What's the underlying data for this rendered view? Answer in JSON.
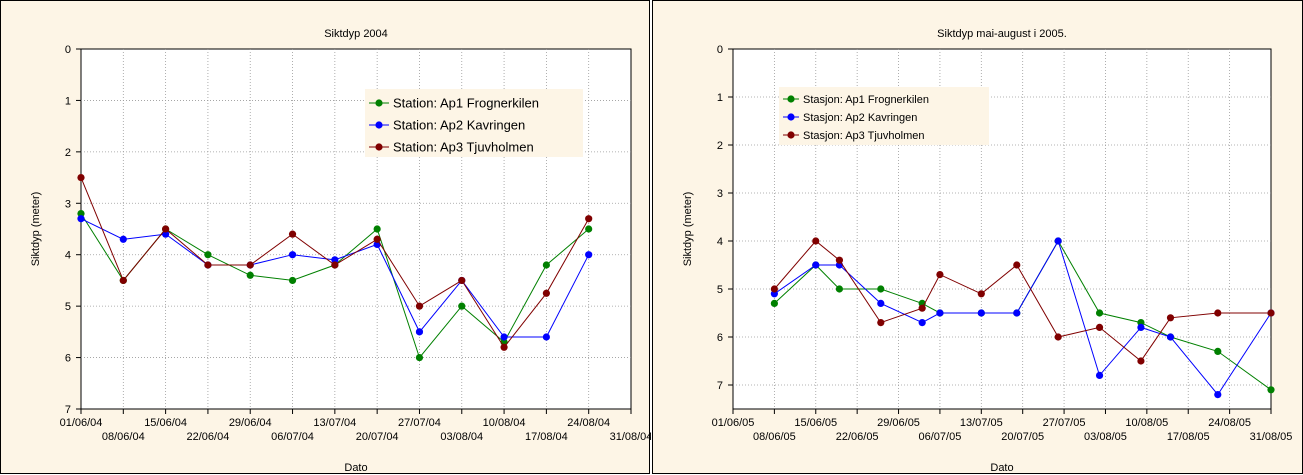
{
  "chart_data": [
    {
      "type": "line",
      "title": "Siktdyp 2004",
      "xlabel": "Dato",
      "ylabel": "Siktdyp (meter)",
      "y_inverted": true,
      "ylim": [
        0,
        7
      ],
      "y_ticks": [
        0,
        1,
        2,
        3,
        4,
        5,
        6,
        7
      ],
      "xlim": [
        "01/06/04",
        "31/08/04"
      ],
      "x_ticks": [
        "01/06/04",
        "08/06/04",
        "15/06/04",
        "22/06/04",
        "29/06/04",
        "06/07/04",
        "13/07/04",
        "20/07/04",
        "27/07/04",
        "03/08/04",
        "10/08/04",
        "17/08/04",
        "24/08/04",
        "31/08/04"
      ],
      "grid": true,
      "legend_position": "top-right",
      "x": [
        "01/06/04",
        "08/06/04",
        "15/06/04",
        "22/06/04",
        "29/06/04",
        "06/07/04",
        "13/07/04",
        "20/07/04",
        "27/07/04",
        "03/08/04",
        "10/08/04",
        "17/08/04",
        "24/08/04"
      ],
      "series": [
        {
          "name": "Station: Ap1 Frognerkilen",
          "color": "#008000",
          "values": [
            3.2,
            4.5,
            3.5,
            4.0,
            4.4,
            4.5,
            4.2,
            3.5,
            6.0,
            5.0,
            5.7,
            4.2,
            3.5
          ]
        },
        {
          "name": "Station: Ap2 Kavringen",
          "color": "#0000ff",
          "values": [
            3.3,
            3.7,
            3.6,
            4.2,
            4.2,
            4.0,
            4.1,
            3.8,
            5.5,
            4.5,
            5.6,
            5.6,
            4.0
          ]
        },
        {
          "name": "Station: Ap3 Tjuvholmen",
          "color": "#800000",
          "values": [
            2.5,
            4.5,
            3.5,
            4.2,
            4.2,
            3.6,
            4.2,
            3.7,
            5.0,
            4.5,
            5.8,
            4.75,
            3.3
          ]
        }
      ]
    },
    {
      "type": "line",
      "title": "Siktdyp mai-august i 2005.",
      "xlabel": "Dato",
      "ylabel": "Siktdyp (meter)",
      "y_inverted": true,
      "ylim": [
        0,
        7.5
      ],
      "y_ticks": [
        0,
        1,
        2,
        3,
        4,
        5,
        6,
        7
      ],
      "xlim": [
        "01/06/05",
        "31/08/05"
      ],
      "x_ticks": [
        "01/06/05",
        "08/06/05",
        "15/06/05",
        "22/06/05",
        "29/06/05",
        "06/07/05",
        "13/07/05",
        "20/07/05",
        "27/07/05",
        "03/08/05",
        "10/08/05",
        "17/08/05",
        "24/08/05",
        "31/08/05"
      ],
      "grid": true,
      "legend_position": "top-left",
      "x": [
        "08/06/05",
        "15/06/05",
        "19/06/05",
        "26/06/05",
        "03/07/05",
        "06/07/05",
        "13/07/05",
        "19/07/05",
        "26/07/05",
        "02/08/05",
        "09/08/05",
        "14/08/05",
        "22/08/05",
        "31/08/05"
      ],
      "series": [
        {
          "name": "Stasjon: Ap1 Frognerkilen",
          "color": "#008000",
          "values": [
            5.3,
            4.5,
            5.0,
            5.0,
            5.3,
            5.5,
            5.5,
            5.5,
            4.0,
            5.5,
            5.7,
            6.0,
            6.3,
            7.1
          ]
        },
        {
          "name": "Stasjon: Ap2 Kavringen",
          "color": "#0000ff",
          "values": [
            5.1,
            4.5,
            4.5,
            5.3,
            5.7,
            5.5,
            5.5,
            5.5,
            4.0,
            6.8,
            5.8,
            6.0,
            7.2,
            5.5
          ]
        },
        {
          "name": "Stasjon: Ap3 Tjuvholmen",
          "color": "#800000",
          "values": [
            5.0,
            4.0,
            4.4,
            5.7,
            5.4,
            4.7,
            5.1,
            4.5,
            6.0,
            5.8,
            6.5,
            5.6,
            5.5,
            5.5
          ]
        }
      ]
    }
  ]
}
